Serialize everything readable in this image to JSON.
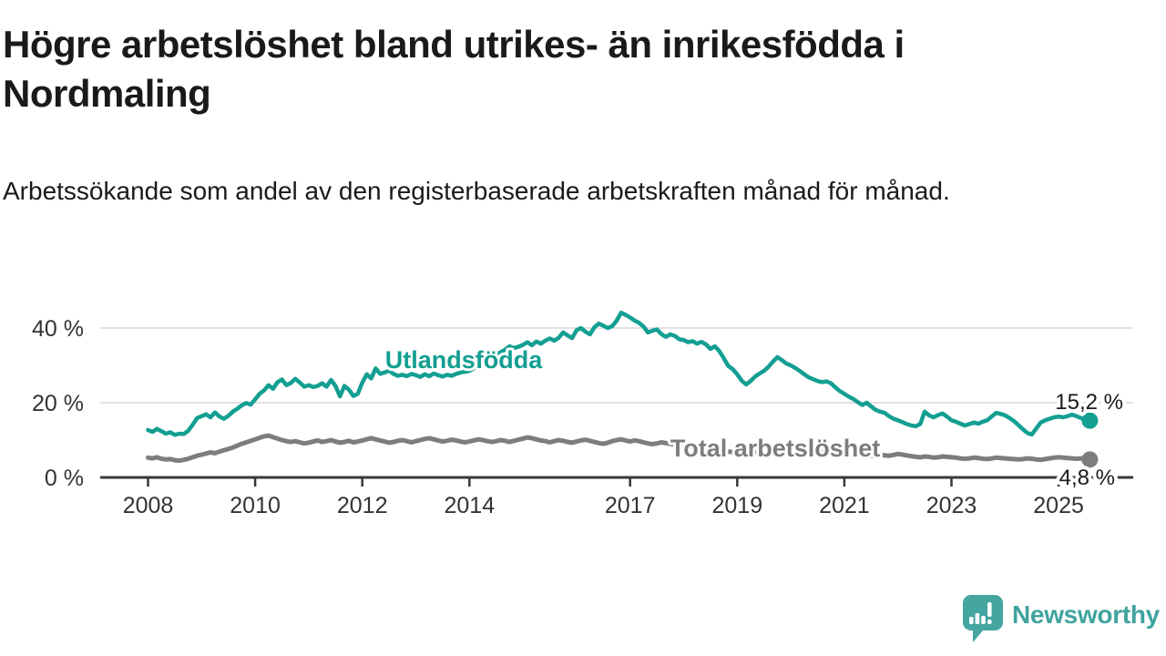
{
  "header": {
    "title": "Högre arbetslöshet bland utrikes- än inrikesfödda i Nordmaling",
    "subtitle": "Arbetssökande som andel av den registerbaserade arbetskraften månad för månad."
  },
  "branding": {
    "logo_text": "Newsworthy",
    "logo_icon": "speech-bubble-with-bar-chart-and-exclamation",
    "logo_color": "#45a5a0"
  },
  "chart_data": {
    "type": "line",
    "title": "Högre arbetslöshet bland utrikes- än inrikesfödda i Nordmaling",
    "subtitle": "Arbetssökande som andel av den registerbaserade arbetskraften månad för månad.",
    "y_unit": "%",
    "x_unit": "månad (monthly, Jan 2008 – Aug 2025)",
    "x_start_year": 2008,
    "x_step_months": 1,
    "ylim": [
      0,
      44
    ],
    "grid": "horizontal",
    "legend_position": "inline-labels",
    "y_ticks": [
      {
        "value": 0,
        "label": "0 %"
      },
      {
        "value": 20,
        "label": "20 %"
      },
      {
        "value": 40,
        "label": "40 %"
      }
    ],
    "x_ticks": [
      {
        "year": 2008,
        "label": "2008"
      },
      {
        "year": 2010,
        "label": "2010"
      },
      {
        "year": 2012,
        "label": "2012"
      },
      {
        "year": 2014,
        "label": "2014"
      },
      {
        "year": 2017,
        "label": "2017"
      },
      {
        "year": 2019,
        "label": "2019"
      },
      {
        "year": 2021,
        "label": "2021"
      },
      {
        "year": 2023,
        "label": "2023"
      },
      {
        "year": 2025,
        "label": "2025"
      }
    ],
    "series": [
      {
        "name": "Utlandsfödda",
        "color": "#139f92",
        "end_label": "15,2 %",
        "end_value": 15.2,
        "values": [
          12.7,
          12.2,
          13.0,
          12.4,
          11.7,
          12.1,
          11.4,
          11.7,
          11.6,
          12.5,
          14.1,
          15.9,
          16.4,
          16.9,
          16.1,
          17.4,
          16.3,
          15.7,
          16.5,
          17.6,
          18.4,
          19.3,
          19.9,
          19.5,
          20.9,
          22.4,
          23.3,
          24.7,
          23.7,
          25.5,
          26.2,
          24.7,
          25.3,
          26.4,
          25.4,
          24.3,
          24.7,
          24.2,
          24.5,
          25.2,
          24.3,
          26.1,
          24.5,
          21.7,
          24.5,
          23.5,
          21.8,
          22.4,
          25.4,
          27.6,
          26.5,
          29.2,
          27.7,
          28.1,
          28.6,
          27.7,
          27.2,
          27.5,
          27.1,
          27.7,
          27.4,
          26.9,
          27.6,
          27.1,
          27.8,
          27.4,
          27.0,
          27.5,
          27.2,
          27.7,
          28.1,
          28.3,
          28.5,
          29.2,
          30.0,
          30.8,
          31.4,
          32.0,
          32.8,
          33.5,
          34.2,
          35.1,
          34.6,
          35.0,
          35.5,
          36.2,
          35.4,
          36.4,
          35.8,
          36.6,
          37.2,
          36.6,
          37.4,
          38.8,
          38.0,
          37.3,
          39.4,
          40.0,
          39.0,
          38.3,
          40.2,
          41.2,
          40.6,
          40.0,
          40.5,
          42.0,
          44.1,
          43.5,
          42.8,
          42.0,
          41.4,
          40.4,
          38.8,
          39.3,
          39.6,
          38.4,
          37.6,
          38.3,
          37.9,
          37.0,
          36.8,
          36.2,
          36.5,
          35.8,
          36.3,
          35.6,
          34.4,
          35.1,
          33.8,
          31.9,
          29.8,
          29.0,
          27.6,
          25.9,
          24.9,
          25.8,
          27.0,
          27.8,
          28.5,
          29.6,
          31.0,
          32.2,
          31.4,
          30.5,
          30.0,
          29.3,
          28.5,
          27.6,
          26.8,
          26.3,
          25.8,
          25.5,
          25.7,
          25.2,
          24.1,
          23.1,
          22.4,
          21.6,
          21.0,
          20.2,
          19.4,
          20.0,
          19.0,
          18.1,
          17.6,
          17.3,
          16.4,
          15.7,
          15.3,
          14.8,
          14.3,
          13.9,
          13.7,
          14.3,
          17.6,
          16.6,
          16.1,
          16.7,
          17.1,
          16.3,
          15.3,
          14.9,
          14.4,
          13.9,
          14.3,
          14.7,
          14.4,
          14.9,
          15.3,
          16.3,
          17.3,
          17.0,
          16.6,
          15.9,
          15.1,
          14.0,
          12.9,
          11.9,
          11.5,
          13.1,
          14.7,
          15.3,
          15.7,
          16.1,
          16.3,
          16.1,
          16.4,
          16.8,
          16.4,
          15.9,
          15.5,
          15.2
        ]
      },
      {
        "name": "Total arbetslöshet",
        "color": "#7d7d7d",
        "end_label": "4,8 %",
        "end_value": 4.8,
        "values": [
          5.3,
          5.1,
          5.4,
          5.0,
          4.8,
          4.9,
          4.6,
          4.5,
          4.7,
          5.0,
          5.4,
          5.8,
          6.1,
          6.4,
          6.7,
          6.5,
          6.9,
          7.3,
          7.6,
          8.0,
          8.5,
          9.0,
          9.4,
          9.8,
          10.2,
          10.6,
          11.0,
          11.2,
          10.8,
          10.4,
          10.0,
          9.7,
          9.5,
          9.7,
          9.4,
          9.1,
          9.3,
          9.6,
          9.9,
          9.5,
          9.7,
          10.0,
          9.6,
          9.3,
          9.5,
          9.8,
          9.4,
          9.6,
          9.9,
          10.2,
          10.5,
          10.2,
          9.9,
          9.6,
          9.3,
          9.5,
          9.8,
          10.0,
          9.7,
          9.4,
          9.7,
          10.0,
          10.3,
          10.5,
          10.2,
          9.9,
          9.6,
          9.8,
          10.1,
          9.9,
          9.6,
          9.4,
          9.6,
          9.9,
          10.2,
          10.0,
          9.7,
          9.5,
          9.7,
          10.0,
          9.8,
          9.5,
          9.8,
          10.1,
          10.4,
          10.7,
          10.5,
          10.2,
          9.9,
          9.7,
          9.4,
          9.7,
          10.0,
          9.8,
          9.5,
          9.3,
          9.6,
          9.9,
          10.1,
          9.8,
          9.5,
          9.2,
          9.0,
          9.3,
          9.7,
          10.0,
          10.2,
          9.9,
          9.6,
          9.9,
          9.7,
          9.4,
          9.1,
          8.9,
          9.1,
          9.4,
          9.2,
          9.0,
          8.8,
          8.6,
          8.4,
          8.2,
          8.1,
          7.9,
          7.7,
          7.6,
          7.4,
          7.3,
          7.1,
          7.0,
          6.9,
          6.8,
          6.7,
          6.6,
          6.5,
          6.6,
          6.7,
          6.8,
          6.9,
          7.0,
          7.1,
          7.2,
          7.1,
          7.0,
          7.1,
          7.2,
          7.4,
          7.6,
          7.5,
          7.3,
          7.1,
          6.9,
          6.7,
          6.5,
          6.3,
          6.2,
          6.4,
          6.5,
          6.3,
          6.1,
          6.0,
          5.9,
          5.8,
          5.9,
          6.0,
          5.9,
          5.8,
          6.0,
          6.3,
          6.1,
          5.9,
          5.7,
          5.5,
          5.4,
          5.6,
          5.5,
          5.3,
          5.4,
          5.6,
          5.5,
          5.4,
          5.3,
          5.1,
          5.0,
          5.1,
          5.3,
          5.2,
          5.0,
          4.9,
          5.1,
          5.3,
          5.2,
          5.1,
          5.0,
          4.9,
          4.8,
          4.9,
          5.1,
          5.0,
          4.8,
          4.7,
          4.9,
          5.1,
          5.3,
          5.4,
          5.3,
          5.2,
          5.1,
          5.0,
          5.1,
          5.0,
          4.8
        ]
      }
    ]
  }
}
